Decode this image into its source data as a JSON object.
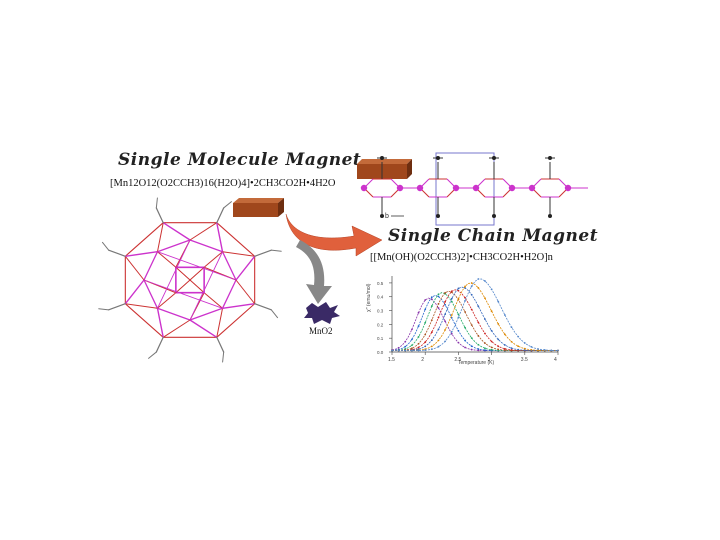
{
  "left": {
    "title": "Single Molecule Magnet",
    "formula": "[Mn12O12(O2CCH3)16(H2O)4]•2CH3CO2H•4H2O"
  },
  "right": {
    "title": "Single Chain Magnet",
    "formula": "[[Mn(OH)(O2CCH3)2]•CH3CO2H•H2O]n",
    "axis_label_b": "b"
  },
  "product": {
    "label": "MnO2"
  },
  "colors": {
    "mn": "#cc33cc",
    "o": "#cc3333",
    "c": "#777777",
    "arrow_main": "#e0603c",
    "arrow_down": "#888888",
    "bar": "#a0471c",
    "box": "#7777cc"
  },
  "chart_data": {
    "type": "line",
    "ylabel": "χ'' (emu/mol)",
    "xlabel": "Temperature (K)",
    "xticks": [
      "1.5",
      "2",
      "2.5",
      "3",
      "3.5",
      "4"
    ],
    "yticks": [
      "0.0",
      "0.1",
      "0.2",
      "0.3",
      "0.4",
      "0.5"
    ],
    "xlim": [
      1.5,
      4
    ],
    "ylim": [
      0,
      0.55
    ],
    "series": [
      {
        "color": "#8833aa",
        "peak_x": 2.05,
        "peak_y": 0.38
      },
      {
        "color": "#2266cc",
        "peak_x": 2.15,
        "peak_y": 0.4
      },
      {
        "color": "#22aa66",
        "peak_x": 2.25,
        "peak_y": 0.42
      },
      {
        "color": "#aa5522",
        "peak_x": 2.35,
        "peak_y": 0.43
      },
      {
        "color": "#cc2222",
        "peak_x": 2.45,
        "peak_y": 0.44
      },
      {
        "color": "#3366bb",
        "peak_x": 2.55,
        "peak_y": 0.46
      },
      {
        "color": "#dd8800",
        "peak_x": 2.68,
        "peak_y": 0.49
      },
      {
        "color": "#5588cc",
        "peak_x": 2.82,
        "peak_y": 0.52
      }
    ]
  }
}
